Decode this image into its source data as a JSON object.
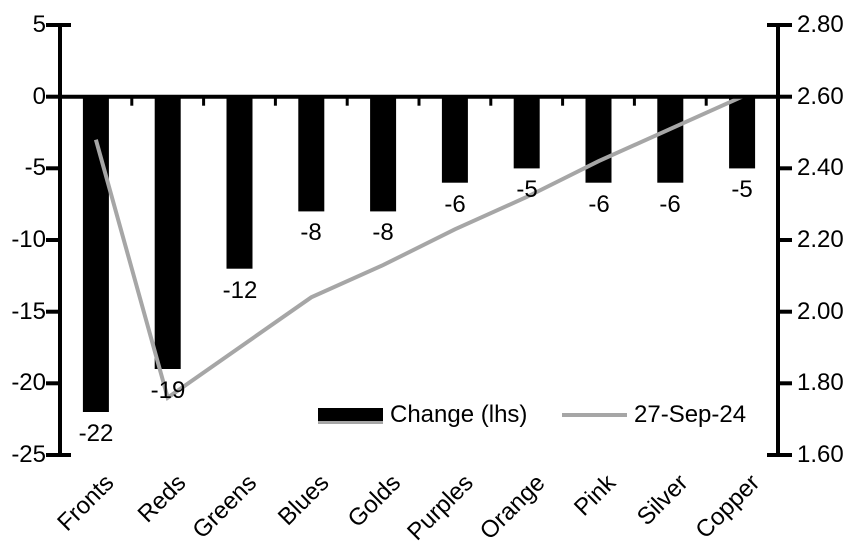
{
  "chart_data": {
    "type": "combo-bar-line",
    "title": "",
    "grid": false,
    "background": "#ffffff",
    "categories": [
      "Fronts",
      "Reds",
      "Greens",
      "Blues",
      "Golds",
      "Purples",
      "Orange",
      "Pink",
      "Silver",
      "Copper"
    ],
    "series": [
      {
        "name": "Change (lhs)",
        "type": "bar",
        "axis": "left",
        "color": "#000000",
        "values": [
          -22,
          -19,
          -12,
          -8,
          -8,
          -6,
          -5,
          -6,
          -6,
          -5
        ],
        "data_labels": [
          "-22",
          "-19",
          "-12",
          "-8",
          "-8",
          "-6",
          "-5",
          "-6",
          "-6",
          "-5"
        ]
      },
      {
        "name": "27-Sep-24",
        "type": "line",
        "axis": "right",
        "color": "#a6a6a6",
        "values": [
          2.48,
          1.76,
          1.9,
          2.04,
          2.13,
          2.23,
          2.32,
          2.42,
          2.51,
          2.6
        ]
      }
    ],
    "left_axis": {
      "range": [
        -25,
        5
      ],
      "tick_values": [
        5,
        0,
        -5,
        -10,
        -15,
        -20,
        -25
      ],
      "tick_labels": [
        "5",
        "0",
        "-5",
        "-10",
        "-15",
        "-20",
        "-25"
      ]
    },
    "right_axis": {
      "range": [
        1.6,
        2.8
      ],
      "tick_values": [
        2.8,
        2.6,
        2.4,
        2.2,
        2.0,
        1.8,
        1.6
      ],
      "tick_labels": [
        "2.80",
        "2.60",
        "2.40",
        "2.20",
        "2.00",
        "1.80",
        "1.60"
      ]
    },
    "legend": {
      "position": "inside-bottom",
      "entries": [
        {
          "label": "Change (lhs)",
          "marker": "bar"
        },
        {
          "label": "27-Sep-24",
          "marker": "line"
        }
      ]
    }
  },
  "colors": {
    "bar": "#000000",
    "line": "#a6a6a6",
    "axis": "#000000",
    "text": "#000000",
    "background": "#ffffff"
  }
}
